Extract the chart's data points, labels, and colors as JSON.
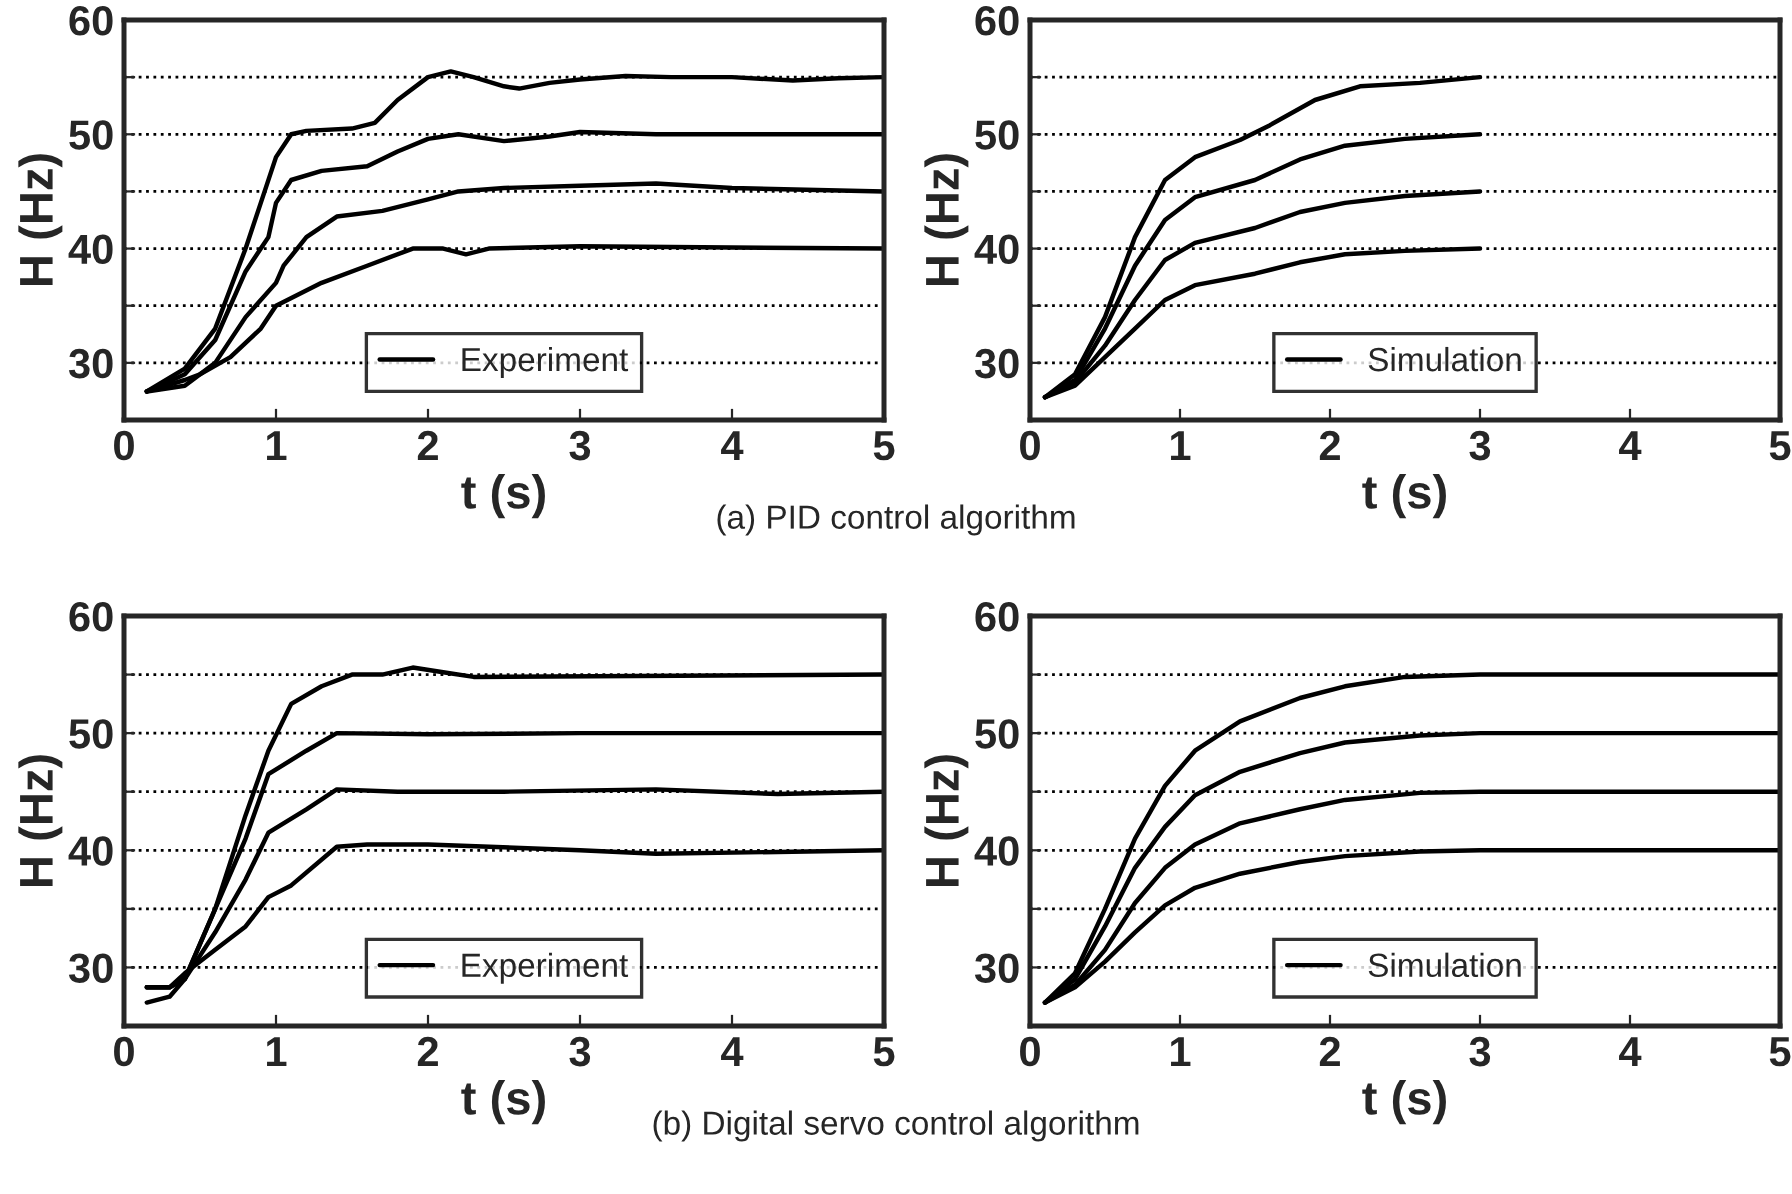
{
  "chart_data": [
    {
      "type": "line",
      "xlabel": "t (s)",
      "ylabel": "H (Hz)",
      "xlim": [
        0,
        5
      ],
      "ylim": [
        25,
        60
      ],
      "xticks": [
        0,
        1,
        2,
        3,
        4,
        5
      ],
      "yticks": [
        30,
        {
          "value": 35,
          "label": null
        },
        40,
        {
          "value": 45,
          "label": null
        },
        50,
        {
          "value": 55,
          "label": null
        },
        60
      ],
      "grid": "y",
      "legend": "bottom",
      "marker": "none",
      "line_style": "solid",
      "annotations": [
        "(a) PID control algorithm"
      ],
      "series": [
        {
          "name": "Experiment",
          "color": "#000000",
          "x": [
            0.15,
            0.4,
            0.6,
            0.8,
            0.9,
            1.0,
            1.1,
            1.2,
            1.5,
            1.65,
            1.8,
            2.0,
            2.15,
            2.3,
            2.5,
            2.6,
            2.8,
            3.0,
            3.3,
            3.6,
            4.0,
            4.4,
            4.7,
            5.0
          ],
          "values": [
            27.5,
            29.5,
            33,
            40,
            44,
            48,
            50,
            50.3,
            50.5,
            51,
            53,
            55,
            55.5,
            55,
            54.2,
            54,
            54.5,
            54.8,
            55.1,
            55,
            55,
            54.7,
            54.9,
            55
          ]
        },
        {
          "color": "#000000",
          "x": [
            0.15,
            0.4,
            0.6,
            0.8,
            0.9,
            0.95,
            1.0,
            1.1,
            1.3,
            1.6,
            1.8,
            2.0,
            2.2,
            2.5,
            2.8,
            3.0,
            3.5,
            4.0,
            5.0
          ],
          "values": [
            27.5,
            29,
            32,
            38,
            40,
            41,
            44,
            46,
            46.8,
            47.2,
            48.5,
            49.6,
            50,
            49.4,
            49.8,
            50.2,
            50,
            50,
            50
          ]
        },
        {
          "color": "#000000",
          "x": [
            0.15,
            0.4,
            0.6,
            0.8,
            1.0,
            1.05,
            1.2,
            1.4,
            1.7,
            2.0,
            2.2,
            2.5,
            3.0,
            3.5,
            4.0,
            5.0
          ],
          "values": [
            27.5,
            28,
            30,
            34,
            37,
            38.5,
            41,
            42.8,
            43.3,
            44.3,
            45,
            45.3,
            45.5,
            45.7,
            45.3,
            45
          ]
        },
        {
          "color": "#000000",
          "x": [
            0.15,
            0.4,
            0.5,
            0.7,
            0.9,
            1.0,
            1.3,
            1.6,
            1.9,
            2.1,
            2.25,
            2.4,
            3.0,
            4.0,
            5.0
          ],
          "values": [
            27.5,
            28.5,
            29,
            30.5,
            33,
            35,
            37,
            38.5,
            40,
            40,
            39.5,
            40,
            40.2,
            40.1,
            40
          ]
        }
      ]
    },
    {
      "type": "line",
      "xlabel": "t (s)",
      "ylabel": "H (Hz)",
      "xlim": [
        0,
        5
      ],
      "ylim": [
        25,
        60
      ],
      "xticks": [
        0,
        1,
        2,
        3,
        4,
        5
      ],
      "yticks": [
        30,
        {
          "value": 35,
          "label": null
        },
        40,
        {
          "value": 45,
          "label": null
        },
        50,
        {
          "value": 55,
          "label": null
        },
        60
      ],
      "grid": "y",
      "legend": "bottom",
      "marker": "none",
      "line_style": "solid",
      "series": [
        {
          "name": "Simulation",
          "color": "#000000",
          "x": [
            0.1,
            0.3,
            0.5,
            0.7,
            0.9,
            1.1,
            1.4,
            1.6,
            1.9,
            2.2,
            2.6,
            3.0
          ],
          "values": [
            27,
            29,
            34,
            41,
            46,
            48,
            49.5,
            50.8,
            53,
            54.2,
            54.5,
            55
          ]
        },
        {
          "color": "#000000",
          "x": [
            0.1,
            0.3,
            0.5,
            0.7,
            0.9,
            1.1,
            1.5,
            1.8,
            2.1,
            2.5,
            3.0
          ],
          "values": [
            27,
            28.5,
            33,
            38.5,
            42.5,
            44.5,
            46,
            47.8,
            49,
            49.6,
            50
          ]
        },
        {
          "color": "#000000",
          "x": [
            0.1,
            0.3,
            0.5,
            0.7,
            0.9,
            1.1,
            1.5,
            1.8,
            2.1,
            2.5,
            3.0
          ],
          "values": [
            27,
            28.3,
            31.5,
            35.5,
            39,
            40.5,
            41.8,
            43.2,
            44,
            44.6,
            45
          ]
        },
        {
          "color": "#000000",
          "x": [
            0.1,
            0.3,
            0.5,
            0.7,
            0.9,
            1.1,
            1.5,
            1.8,
            2.1,
            2.5,
            3.0
          ],
          "values": [
            27,
            28,
            30.5,
            33,
            35.5,
            36.8,
            37.8,
            38.8,
            39.5,
            39.8,
            40
          ]
        }
      ]
    },
    {
      "type": "line",
      "xlabel": "t (s)",
      "ylabel": "H (Hz)",
      "xlim": [
        0,
        5
      ],
      "ylim": [
        25,
        60
      ],
      "xticks": [
        0,
        1,
        2,
        3,
        4,
        5
      ],
      "yticks": [
        30,
        {
          "value": 35,
          "label": null
        },
        40,
        {
          "value": 45,
          "label": null
        },
        50,
        {
          "value": 55,
          "label": null
        },
        60
      ],
      "grid": "y",
      "legend": "bottom",
      "marker": "none",
      "line_style": "solid",
      "annotations": [
        "(b) Digital servo control algorithm"
      ],
      "series": [
        {
          "name": "Experiment",
          "color": "#000000",
          "x": [
            0.15,
            0.3,
            0.4,
            0.6,
            0.8,
            0.95,
            1.1,
            1.3,
            1.5,
            1.7,
            1.9,
            2.1,
            2.3,
            5.0
          ],
          "values": [
            27,
            27.5,
            29,
            35,
            43,
            48.5,
            52.5,
            54,
            55,
            55,
            55.6,
            55.2,
            54.8,
            55
          ]
        },
        {
          "color": "#000000",
          "x": [
            0.15,
            0.3,
            0.4,
            0.6,
            0.8,
            0.95,
            1.2,
            1.4,
            2.0,
            3.0,
            5.0
          ],
          "values": [
            28.3,
            28.3,
            29,
            35,
            41,
            46.5,
            48.5,
            50,
            49.9,
            50,
            50
          ]
        },
        {
          "color": "#000000",
          "x": [
            0.15,
            0.3,
            0.4,
            0.6,
            0.8,
            0.95,
            1.2,
            1.4,
            1.8,
            2.5,
            3.5,
            4.3,
            5.0
          ],
          "values": [
            28.3,
            28.3,
            29,
            33,
            37.5,
            41.5,
            43.5,
            45.2,
            45,
            45,
            45.2,
            44.8,
            45
          ]
        },
        {
          "color": "#000000",
          "x": [
            0.15,
            0.3,
            0.4,
            0.6,
            0.8,
            0.95,
            1.1,
            1.4,
            1.6,
            2.0,
            3.0,
            3.5,
            5.0
          ],
          "values": [
            28.3,
            28.3,
            29.5,
            31.5,
            33.5,
            36,
            37,
            40.3,
            40.5,
            40.5,
            40,
            39.7,
            40
          ]
        }
      ]
    },
    {
      "type": "line",
      "xlabel": "t (s)",
      "ylabel": "H (Hz)",
      "xlim": [
        0,
        5
      ],
      "ylim": [
        25,
        60
      ],
      "xticks": [
        0,
        1,
        2,
        3,
        4,
        5
      ],
      "yticks": [
        30,
        {
          "value": 35,
          "label": null
        },
        40,
        {
          "value": 45,
          "label": null
        },
        50,
        {
          "value": 55,
          "label": null
        },
        60
      ],
      "grid": "y",
      "legend": "bottom",
      "marker": "none",
      "line_style": "solid",
      "series": [
        {
          "name": "Simulation",
          "color": "#000000",
          "x": [
            0.1,
            0.3,
            0.5,
            0.7,
            0.9,
            1.1,
            1.4,
            1.8,
            2.1,
            2.5,
            3.0,
            5.0
          ],
          "values": [
            27,
            29.5,
            35,
            41,
            45.5,
            48.5,
            51,
            53,
            54,
            54.8,
            55,
            55
          ]
        },
        {
          "color": "#000000",
          "x": [
            0.1,
            0.3,
            0.5,
            0.7,
            0.9,
            1.1,
            1.4,
            1.8,
            2.1,
            2.6,
            3.0,
            5.0
          ],
          "values": [
            27,
            29,
            33.5,
            38.5,
            42,
            44.7,
            46.7,
            48.3,
            49.2,
            49.8,
            50,
            50
          ]
        },
        {
          "color": "#000000",
          "x": [
            0.1,
            0.3,
            0.5,
            0.7,
            0.9,
            1.1,
            1.4,
            1.8,
            2.1,
            2.6,
            3.0,
            5.0
          ],
          "values": [
            27,
            28.5,
            31.5,
            35.5,
            38.5,
            40.5,
            42.3,
            43.5,
            44.3,
            44.9,
            45,
            45
          ]
        },
        {
          "color": "#000000",
          "x": [
            0.1,
            0.3,
            0.5,
            0.7,
            0.9,
            1.1,
            1.4,
            1.8,
            2.1,
            2.6,
            3.0,
            5.0
          ],
          "values": [
            27,
            28.3,
            30.5,
            33,
            35.3,
            36.8,
            38,
            39,
            39.5,
            39.9,
            40,
            40
          ]
        }
      ]
    }
  ]
}
